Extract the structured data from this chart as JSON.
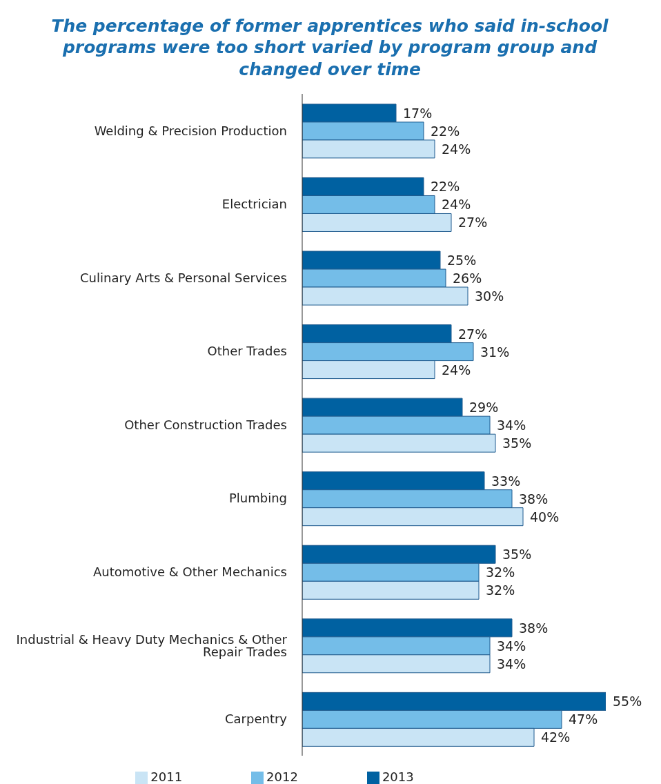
{
  "chart_data": {
    "type": "bar",
    "orientation": "horizontal",
    "title": "The percentage of former apprentices who said in-school programs were too short varied by program group and changed over time",
    "categories": [
      "Welding & Precision Production",
      "Electrician",
      "Culinary Arts & Personal Services",
      "Other Trades",
      "Other Construction Trades",
      "Plumbing",
      "Automotive & Other Mechanics",
      "Industrial & Heavy Duty Mechanics & Other Repair Trades",
      "Carpentry"
    ],
    "series": [
      {
        "name": "2013",
        "color": "#0061a1",
        "values": [
          17,
          22,
          25,
          27,
          29,
          33,
          35,
          38,
          55
        ],
        "value_labels": [
          "17%",
          "22%",
          "25%",
          "27%",
          "29%",
          "33%",
          "35%",
          "38%",
          "55%"
        ]
      },
      {
        "name": "2012",
        "color": "#74bde8",
        "values": [
          22,
          24,
          26,
          31,
          34,
          38,
          32,
          34,
          47
        ],
        "value_labels": [
          "22%",
          "24%",
          "26%",
          "31%",
          "34%",
          "38%",
          "32%",
          "34%",
          "47%"
        ]
      },
      {
        "name": "2011",
        "color": "#c9e4f5",
        "values": [
          24,
          27,
          30,
          24,
          35,
          40,
          32,
          34,
          42
        ],
        "value_labels": [
          "24%",
          "27%",
          "30%",
          "24%",
          "35%",
          "40%",
          "32%",
          "34%",
          "42%"
        ]
      }
    ],
    "legend": "bottom"
  }
}
